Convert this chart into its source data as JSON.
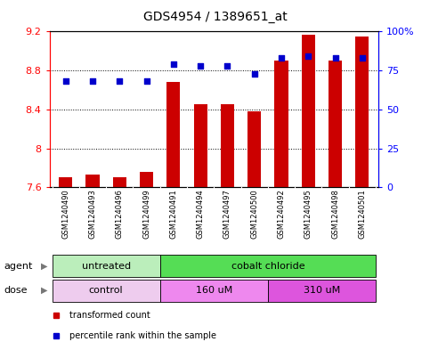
{
  "title": "GDS4954 / 1389651_at",
  "samples": [
    "GSM1240490",
    "GSM1240493",
    "GSM1240496",
    "GSM1240499",
    "GSM1240491",
    "GSM1240494",
    "GSM1240497",
    "GSM1240500",
    "GSM1240492",
    "GSM1240495",
    "GSM1240498",
    "GSM1240501"
  ],
  "transformed_count": [
    7.7,
    7.73,
    7.7,
    7.76,
    8.68,
    8.45,
    8.45,
    8.38,
    8.9,
    9.17,
    8.9,
    9.15
  ],
  "percentile_rank": [
    68,
    68,
    68,
    68,
    79,
    78,
    78,
    73,
    83,
    84,
    83,
    83
  ],
  "bar_bottom": 7.6,
  "ylim_left": [
    7.6,
    9.2
  ],
  "ylim_right": [
    0,
    100
  ],
  "yticks_left": [
    7.6,
    8.0,
    8.4,
    8.8,
    9.2
  ],
  "ytick_labels_left": [
    "7.6",
    "8",
    "8.4",
    "8.8",
    "9.2"
  ],
  "yticks_right": [
    0,
    25,
    50,
    75,
    100
  ],
  "ytick_labels_right": [
    "0",
    "25",
    "50",
    "75",
    "100%"
  ],
  "bar_color": "#cc0000",
  "dot_color": "#0000cc",
  "agent_groups": [
    {
      "label": "untreated",
      "start": 0,
      "end": 4,
      "color": "#bbeebb"
    },
    {
      "label": "cobalt chloride",
      "start": 4,
      "end": 12,
      "color": "#55dd55"
    }
  ],
  "dose_groups": [
    {
      "label": "control",
      "start": 0,
      "end": 4,
      "color": "#eeccee"
    },
    {
      "label": "160 uM",
      "start": 4,
      "end": 8,
      "color": "#ee88ee"
    },
    {
      "label": "310 uM",
      "start": 8,
      "end": 12,
      "color": "#dd55dd"
    }
  ],
  "legend_red_label": "transformed count",
  "legend_blue_label": "percentile rank within the sample",
  "agent_label": "agent",
  "dose_label": "dose",
  "sample_bg_color": "#cccccc",
  "fig_bg_color": "#ffffff"
}
